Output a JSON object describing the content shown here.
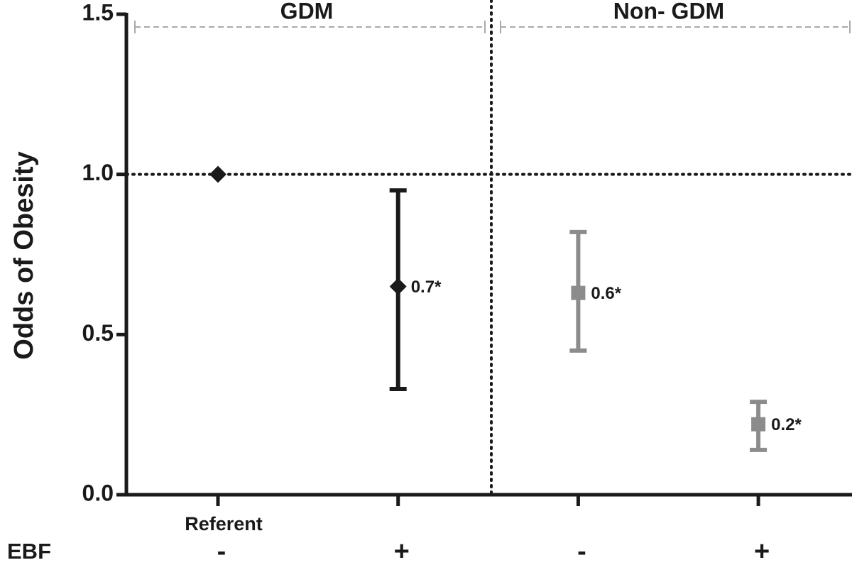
{
  "chart_data": {
    "type": "errorbar",
    "y_label": "Odds of Obesity",
    "x_label": "EBF",
    "annotation": "Referent",
    "groups": [
      "GDM",
      "Non- GDM"
    ],
    "categories": [
      "-",
      "+",
      "-",
      "+"
    ],
    "values": [
      1,
      0.65,
      0.63,
      0.22
    ],
    "lower": [
      null,
      0.33,
      0.45,
      0.14
    ],
    "upper": [
      null,
      0.95,
      0.82,
      0.29
    ],
    "value_labels": [
      null,
      "0.7*",
      "0.6*",
      "0.2*"
    ],
    "colors": [
      "#1a1a1a",
      "#1a1a1a",
      "#8c8c8c",
      "#8c8c8c"
    ],
    "markers": [
      "diamond",
      "diamond",
      "square",
      "square"
    ],
    "reference_line": 1,
    "ylim": [
      0,
      1.5
    ],
    "yticks": [
      {
        "value": 0,
        "label": "0.0"
      },
      {
        "value": 0.5,
        "label": "0.5"
      },
      {
        "value": 1,
        "label": "1.0"
      },
      {
        "value": 1.5,
        "label": "1.5"
      }
    ]
  }
}
